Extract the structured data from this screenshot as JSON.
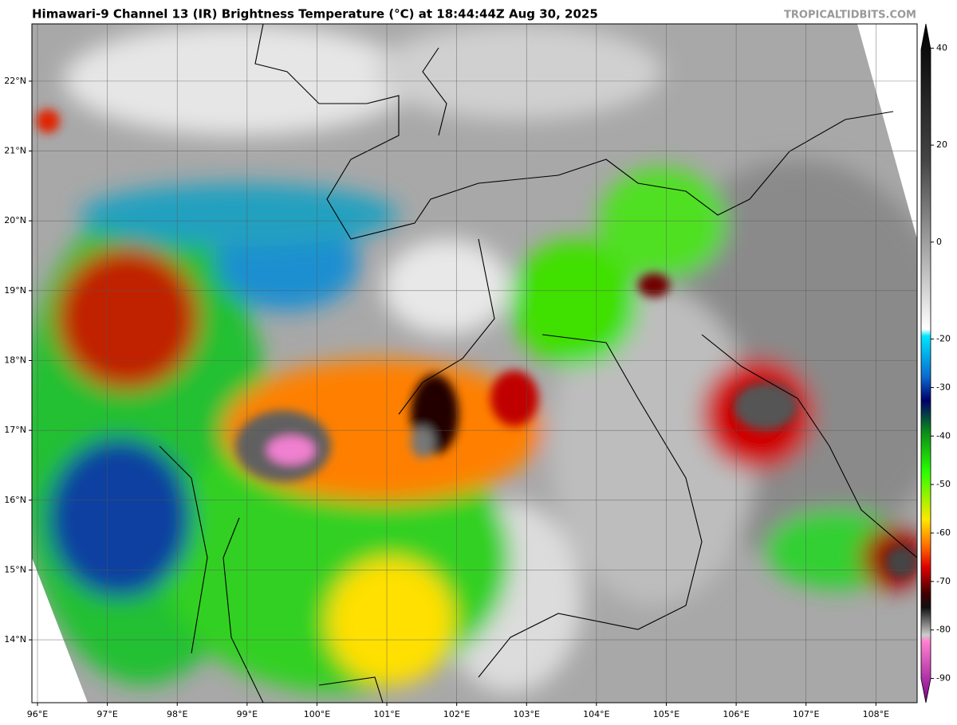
{
  "map": {
    "title": "Himawari-9 Channel 13 (IR) Brightness Temperature (°C) at 18:44:44Z Aug 30, 2025",
    "watermark": "TROPICALTIDBITS.COM",
    "lonlim": [
      95.92,
      108.59
    ],
    "latlim": [
      13.1,
      22.82
    ],
    "lon_ticks": [
      {
        "value": 96,
        "label": "96°E"
      },
      {
        "value": 97,
        "label": "97°E"
      },
      {
        "value": 98,
        "label": "98°E"
      },
      {
        "value": 99,
        "label": "99°E"
      },
      {
        "value": 100,
        "label": "100°E"
      },
      {
        "value": 101,
        "label": "101°E"
      },
      {
        "value": 102,
        "label": "102°E"
      },
      {
        "value": 103,
        "label": "103°E"
      },
      {
        "value": 104,
        "label": "104°E"
      },
      {
        "value": 105,
        "label": "105°E"
      },
      {
        "value": 106,
        "label": "106°E"
      },
      {
        "value": 107,
        "label": "107°E"
      },
      {
        "value": 108,
        "label": "108°E"
      }
    ],
    "lat_ticks": [
      {
        "value": 22,
        "label": "22°N"
      },
      {
        "value": 21,
        "label": "21°N"
      },
      {
        "value": 20,
        "label": "20°N"
      },
      {
        "value": 19,
        "label": "19°N"
      },
      {
        "value": 18,
        "label": "18°N"
      },
      {
        "value": 17,
        "label": "17°N"
      },
      {
        "value": 16,
        "label": "16°N"
      },
      {
        "value": 15,
        "label": "15°N"
      },
      {
        "value": 14,
        "label": "14°N"
      }
    ],
    "colorbar": {
      "lim": [
        -95,
        45
      ],
      "ticks": [
        40,
        20,
        0,
        -20,
        -30,
        -40,
        -50,
        -60,
        -70,
        -80,
        -90
      ]
    }
  }
}
